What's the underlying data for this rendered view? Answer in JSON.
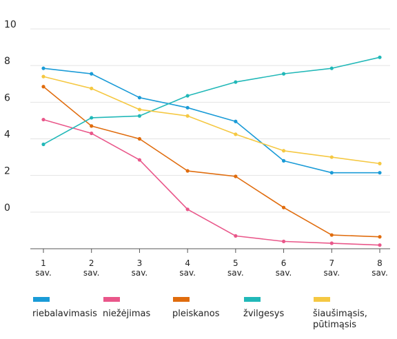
{
  "chart_data": {
    "type": "line",
    "title": "",
    "xlabel": "",
    "ylabel": "",
    "ylim": [
      -2,
      10
    ],
    "y_ticks": [
      0,
      2,
      4,
      6,
      8,
      10
    ],
    "grid": true,
    "legend_position": "bottom",
    "categories": [
      [
        "1",
        "sav."
      ],
      [
        "2",
        "sav."
      ],
      [
        "3",
        "sav."
      ],
      [
        "4",
        "sav."
      ],
      [
        "5",
        "sav."
      ],
      [
        "6",
        "sav."
      ],
      [
        "7",
        "sav."
      ],
      [
        "8",
        "sav."
      ]
    ],
    "series": [
      {
        "name": "riebalavimasis",
        "color": "#1a9bd7",
        "values": [
          7.85,
          7.55,
          6.25,
          5.7,
          4.95,
          2.8,
          2.15,
          2.15
        ]
      },
      {
        "name": "niežėjimas",
        "color": "#e9578a",
        "values": [
          5.05,
          4.3,
          2.85,
          0.15,
          -1.3,
          -1.6,
          -1.7,
          -1.8
        ]
      },
      {
        "name": "pleiskanos",
        "color": "#e06c0d",
        "values": [
          6.85,
          4.7,
          4.0,
          2.25,
          1.95,
          0.25,
          -1.25,
          -1.35
        ]
      },
      {
        "name": "žvilgesys",
        "color": "#21b8b8",
        "values": [
          3.7,
          5.15,
          5.25,
          6.35,
          7.1,
          7.55,
          7.85,
          8.45
        ]
      },
      {
        "name": "šiaušimąsis, pūtimąsis",
        "label_lines": [
          "šiaušimąsis,",
          "pūtimąsis"
        ],
        "color": "#f5c842",
        "values": [
          7.4,
          6.75,
          5.6,
          5.25,
          4.25,
          3.35,
          3.0,
          2.65
        ]
      }
    ]
  }
}
